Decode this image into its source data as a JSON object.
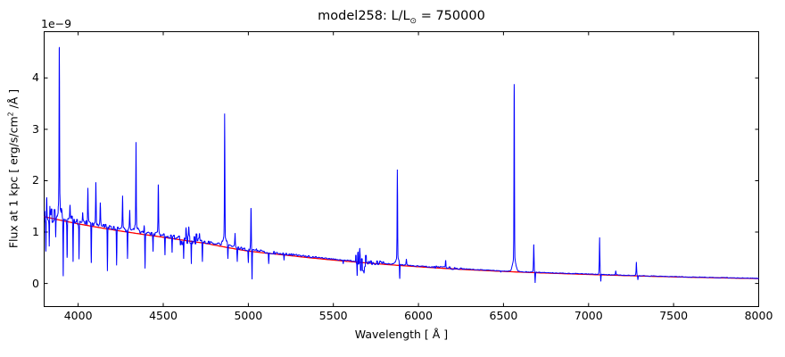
{
  "figure": {
    "title": {
      "pre": "model258: L/L",
      "sub": "⊙",
      "post": " = 750000"
    },
    "offset_text": "1e−9",
    "xlabel": "Wavelength [ Å ]",
    "ylabel": {
      "pre": "Flux at 1 kpc [ erg/s/cm",
      "sup": "2",
      "post": " /Å ]"
    }
  },
  "chart_data": {
    "type": "line",
    "title": "model258: L/L⊙ = 750000",
    "xlabel": "Wavelength [ Å ]",
    "ylabel": "Flux at 1 kpc [ erg/s/cm^2 /Å ]",
    "y_offset_text": "1e−9",
    "flux_units": "1e-9 erg/s/cm^2/Å",
    "wavelength_units": "Å",
    "xlim": [
      3800,
      8000
    ],
    "ylim": [
      -0.45,
      4.9
    ],
    "xticks": [
      4000,
      4500,
      5000,
      5500,
      6000,
      6500,
      7000,
      7500,
      8000
    ],
    "yticks": [
      0,
      1,
      2,
      3,
      4
    ],
    "grid": false,
    "legend": "none",
    "series": [
      {
        "name": "observed-spectrum",
        "color": "#0000ff"
      },
      {
        "name": "model-continuum",
        "color": "#ff0000"
      }
    ],
    "continuum_anchors": [
      [
        3800,
        1.3
      ],
      [
        4000,
        1.16
      ],
      [
        4250,
        1.02
      ],
      [
        4500,
        0.9
      ],
      [
        4750,
        0.78
      ],
      [
        5000,
        0.63
      ],
      [
        5250,
        0.54
      ],
      [
        5500,
        0.455
      ],
      [
        5750,
        0.385
      ],
      [
        6000,
        0.325
      ],
      [
        6250,
        0.275
      ],
      [
        6563,
        0.225
      ],
      [
        7000,
        0.175
      ],
      [
        7500,
        0.128
      ],
      [
        8000,
        0.095
      ]
    ],
    "emission_lines": [
      [
        3815,
        1.72
      ],
      [
        3835,
        1.42
      ],
      [
        3889,
        4.5
      ],
      [
        3952,
        1.5
      ],
      [
        4026,
        1.35
      ],
      [
        4057,
        1.82
      ],
      [
        4104,
        2.0
      ],
      [
        4130,
        1.55
      ],
      [
        4261,
        1.72
      ],
      [
        4303,
        1.42
      ],
      [
        4340,
        2.77
      ],
      [
        4388,
        1.15
      ],
      [
        4471,
        1.92
      ],
      [
        4634,
        1.02
      ],
      [
        4650,
        1.05
      ],
      [
        4713,
        0.97
      ],
      [
        4861,
        3.33
      ],
      [
        4922,
        0.97
      ],
      [
        5016,
        1.47
      ],
      [
        5048,
        0.7
      ],
      [
        5090,
        0.6
      ],
      [
        5270,
        0.56
      ],
      [
        5655,
        0.62
      ],
      [
        5876,
        2.22
      ],
      [
        5929,
        0.47
      ],
      [
        6160,
        0.44
      ],
      [
        6563,
        3.88
      ],
      [
        6678,
        0.76
      ],
      [
        7065,
        0.9
      ],
      [
        7160,
        0.25
      ],
      [
        7281,
        0.42
      ]
    ],
    "absorption_lines": [
      [
        3810,
        0.62
      ],
      [
        3830,
        0.72
      ],
      [
        3868,
        0.9
      ],
      [
        3912,
        0.14
      ],
      [
        3935,
        0.5
      ],
      [
        3970,
        0.42
      ],
      [
        4005,
        0.47
      ],
      [
        4077,
        0.4
      ],
      [
        4172,
        0.24
      ],
      [
        4226,
        0.35
      ],
      [
        4290,
        0.48
      ],
      [
        4393,
        0.29
      ],
      [
        4440,
        0.62
      ],
      [
        4510,
        0.55
      ],
      [
        4552,
        0.6
      ],
      [
        4620,
        0.48
      ],
      [
        4665,
        0.38
      ],
      [
        4730,
        0.42
      ],
      [
        4880,
        0.48
      ],
      [
        4935,
        0.42
      ],
      [
        5000,
        0.4
      ],
      [
        5022,
        0.08
      ],
      [
        5120,
        0.38
      ],
      [
        5210,
        0.45
      ],
      [
        5558,
        0.38
      ],
      [
        5640,
        0.15
      ],
      [
        5680,
        0.2
      ],
      [
        5890,
        0.09
      ],
      [
        6484,
        0.22
      ],
      [
        6686,
        0.01
      ],
      [
        7072,
        0.04
      ],
      [
        7290,
        0.07
      ]
    ],
    "noise_regions": [
      [
        3800,
        3905,
        0.14
      ],
      [
        3905,
        4055,
        0.08
      ],
      [
        4055,
        4600,
        0.04
      ],
      [
        4600,
        4710,
        0.14
      ],
      [
        4710,
        5160,
        0.032
      ],
      [
        5160,
        5400,
        0.018
      ],
      [
        5400,
        5630,
        0.01
      ],
      [
        5630,
        5700,
        0.2
      ],
      [
        5700,
        5800,
        0.045
      ],
      [
        5800,
        6090,
        0.01
      ],
      [
        6090,
        6260,
        0.025
      ],
      [
        6260,
        8000,
        0.006
      ]
    ],
    "blue_offset_factor": 1.04
  }
}
